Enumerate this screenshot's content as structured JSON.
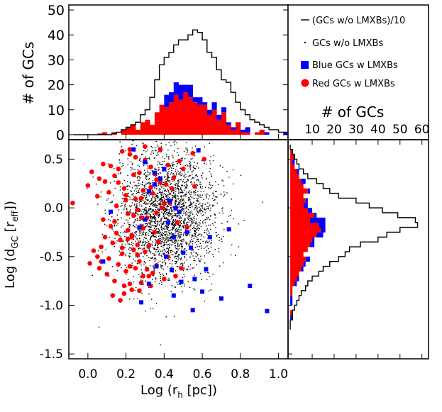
{
  "chart_data": [
    {
      "panel": "top-histogram",
      "type": "histogram",
      "title": "",
      "xlabel": "",
      "ylabel": "# of GCs",
      "xlim": [
        -0.1,
        1.05
      ],
      "ylim": [
        -2,
        52
      ],
      "yticks": [
        0,
        10,
        20,
        30,
        40,
        50
      ],
      "bin_width": 0.025,
      "bin_start": -0.075,
      "series": [
        {
          "name": "(GCs w/o LMXBs)/10",
          "style": "step",
          "color": "#000000",
          "values": [
            0,
            0,
            0,
            0,
            0,
            0,
            0,
            0,
            0.5,
            1,
            2,
            3,
            4,
            5,
            8,
            10,
            15,
            22,
            28,
            31,
            33,
            36,
            38,
            38,
            40,
            42,
            41,
            38,
            33,
            31,
            26,
            22,
            21,
            17,
            13,
            10,
            8,
            6,
            5,
            4,
            3,
            2,
            2,
            1,
            1,
            1,
            0,
            0
          ]
        },
        {
          "name": "Red GCs w LMXBs",
          "style": "filled",
          "color": "#ff0000",
          "values": [
            0,
            0,
            0,
            0,
            0,
            0.5,
            1,
            0,
            1,
            0,
            2,
            3,
            4,
            2,
            5,
            6,
            4,
            9,
            12,
            11,
            13,
            16,
            14,
            17,
            15,
            13,
            12,
            12,
            8,
            10,
            6,
            9,
            4,
            2,
            5,
            1,
            1,
            0,
            1,
            2,
            0,
            0,
            0,
            0,
            0,
            0,
            0,
            0
          ]
        },
        {
          "name": "Blue GCs w LMXBs",
          "style": "filled",
          "color": "#0000ff",
          "values": [
            0,
            0,
            0,
            0,
            0,
            0,
            0,
            0,
            0,
            0,
            0,
            0,
            0,
            0,
            0,
            0,
            0,
            0,
            0,
            5,
            4,
            5,
            6,
            3,
            5,
            2,
            3,
            1,
            2,
            3,
            2,
            2,
            1,
            1,
            0,
            1,
            2,
            0,
            0,
            0,
            1,
            0,
            0,
            0,
            1,
            0,
            0,
            0
          ]
        }
      ],
      "legend": {
        "placement": "top-right",
        "entries": [
          {
            "label": "(GCs w/o LMXBs)/10",
            "marker": "line",
            "color": "#000000"
          },
          {
            "label": "GCs w/o LMXBs",
            "marker": "dot",
            "color": "#000000"
          },
          {
            "label": "Blue GCs w LMXBs",
            "marker": "square",
            "color": "#0000ff"
          },
          {
            "label": "Red GCs w LMXBs",
            "marker": "circle",
            "color": "#ff0000"
          }
        ]
      }
    },
    {
      "panel": "main-scatter",
      "type": "scatter",
      "title": "",
      "xlabel": "Log (r_h [pc])",
      "ylabel": "Log (d_GC [r_eff])",
      "xlim": [
        -0.1,
        1.05
      ],
      "ylim": [
        -1.55,
        0.7
      ],
      "xticks": [
        0.0,
        0.2,
        0.4,
        0.6,
        0.8,
        1.0
      ],
      "xtick_labels": [
        "0.0",
        "0.2",
        "0.4",
        "0.6",
        "0.8",
        "1.0"
      ],
      "yticks": [
        -1.5,
        -1.0,
        -0.5,
        0.0,
        0.5
      ],
      "ytick_labels": [
        "-1.5",
        "-1.0",
        "-0.5",
        "0.0",
        "0.5"
      ],
      "background_cloud": {
        "name": "GCs w/o LMXBs",
        "color": "#000000",
        "count_drawn": 2600,
        "center": [
          0.41,
          -0.07
        ],
        "spread": [
          0.13,
          0.33
        ]
      },
      "series": [
        {
          "name": "Red GCs w LMXBs",
          "color": "#ff0000",
          "x": [
            0.12,
            0.16,
            0.08,
            0.02,
            0.25,
            0.3,
            0.22,
            0.18,
            0.06,
            0.14,
            0.27,
            0.33,
            0.36,
            0.41,
            0.45,
            0.5,
            0.38,
            0.3,
            0.24,
            0.19,
            0.11,
            0.05,
            0.0,
            -0.08,
            0.15,
            0.2,
            0.28,
            0.34,
            0.26,
            0.21,
            0.31,
            0.36,
            0.43,
            0.39,
            0.47,
            0.52,
            0.35,
            0.29,
            0.23,
            0.17,
            0.13,
            0.09,
            0.07,
            0.03,
            0.18,
            0.24,
            0.32,
            0.37,
            0.42,
            0.27,
            0.22,
            0.16,
            0.11,
            0.06,
            0.01,
            0.2,
            0.25,
            0.29,
            0.34,
            0.4,
            0.46,
            0.33,
            0.28,
            0.23,
            0.19,
            0.14,
            0.1,
            0.05,
            0.13,
            0.17,
            0.22,
            0.27,
            0.31,
            0.36,
            0.3,
            0.26,
            0.21,
            0.15,
            0.12,
            0.08,
            0.24,
            0.29,
            0.33,
            0.38,
            0.44,
            0.16,
            0.2,
            0.25,
            0.35,
            0.42,
            0.48,
            0.55,
            0.61,
            0.56,
            0.49,
            0.4,
            0.32,
            0.26,
            0.21,
            0.18,
            0.14,
            0.09,
            0.07,
            0.19,
            0.23,
            0.28,
            0.22
          ],
          "y": [
            0.43,
            0.4,
            0.45,
            0.37,
            0.52,
            0.49,
            0.55,
            0.58,
            0.3,
            0.33,
            0.36,
            0.42,
            0.29,
            0.24,
            0.31,
            0.4,
            0.6,
            0.63,
            0.34,
            0.2,
            0.16,
            0.12,
            0.23,
            0.05,
            0.02,
            0.08,
            0.1,
            0.15,
            -0.02,
            -0.06,
            -0.1,
            -0.05,
            0.05,
            0.0,
            -0.15,
            -0.2,
            -0.25,
            -0.21,
            -0.28,
            -0.33,
            -0.36,
            -0.3,
            -0.4,
            -0.44,
            -0.47,
            -0.43,
            -0.39,
            -0.35,
            -0.5,
            -0.55,
            -0.6,
            -0.58,
            -0.52,
            -0.62,
            -0.57,
            -0.65,
            -0.62,
            -0.7,
            -0.67,
            -0.73,
            -0.7,
            -0.8,
            -0.77,
            -0.84,
            -0.88,
            -0.75,
            -0.68,
            -0.5,
            -0.9,
            -0.95,
            -0.78,
            -0.85,
            -0.63,
            -0.59,
            -0.45,
            -0.38,
            -0.32,
            -0.26,
            -0.19,
            -0.12,
            -0.08,
            0.18,
            0.21,
            0.26,
            0.2,
            0.26,
            0.13,
            0.09,
            0.35,
            0.44,
            0.48,
            0.56,
            0.5,
            0.22,
            -0.62,
            0.05,
            -0.7,
            -0.48,
            -0.23,
            -0.41,
            -0.14,
            0.27,
            -0.55,
            -0.8,
            -0.3,
            -0.1,
            0.6
          ],
          "marker": "circle"
        },
        {
          "name": "Blue GCs w LMXBs",
          "color": "#0000ff",
          "x": [
            0.58,
            0.24,
            0.3,
            0.35,
            0.38,
            0.32,
            0.43,
            0.46,
            0.48,
            0.3,
            0.27,
            0.45,
            0.52,
            0.54,
            0.41,
            0.36,
            0.44,
            0.32,
            0.62,
            0.56,
            0.49,
            0.6,
            0.12,
            0.08,
            0.7,
            0.85,
            0.94,
            0.64,
            0.74,
            0.4,
            0.45,
            0.28,
            0.55,
            0.5,
            0.35,
            0.42
          ],
          "y": [
            0.59,
            0.6,
            0.47,
            0.24,
            0.3,
            0.17,
            0.07,
            0.0,
            -0.04,
            -0.12,
            -0.2,
            -0.3,
            -0.25,
            -0.41,
            -0.5,
            -0.6,
            -0.64,
            -0.78,
            -0.63,
            -0.73,
            -0.76,
            -0.86,
            -0.04,
            -0.55,
            -0.93,
            -0.8,
            -1.06,
            -0.3,
            -0.22,
            0.4,
            -0.9,
            -0.97,
            -1.05,
            -0.46,
            0.36,
            -0.15
          ],
          "marker": "square"
        }
      ]
    },
    {
      "panel": "right-histogram",
      "type": "histogram",
      "orientation": "horizontal",
      "title": "# of GCs",
      "xlabel": "# of GCs",
      "ylabel": "",
      "xlim": [
        -1,
        63
      ],
      "xticks": [
        10,
        20,
        30,
        40,
        50,
        60
      ],
      "xtick_labels": [
        "10",
        "20",
        "30",
        "40",
        "50",
        "60"
      ],
      "ylim": [
        -1.55,
        0.7
      ],
      "bin_width": 0.05,
      "bin_start": -1.25,
      "series": [
        {
          "name": "(GCs w/o LMXBs)/10",
          "style": "step",
          "color": "#000000",
          "values": [
            0,
            0,
            1,
            1,
            2,
            3,
            4,
            5,
            7,
            8,
            10,
            13,
            15,
            18,
            22,
            25,
            27,
            32,
            40,
            44,
            50,
            58,
            57,
            49,
            42,
            36,
            30,
            22,
            18,
            15,
            12,
            8,
            6,
            4,
            3,
            2,
            1,
            0
          ]
        },
        {
          "name": "Red GCs w LMXBs",
          "style": "filled",
          "color": "#ff0000",
          "values": [
            0,
            0,
            0,
            1,
            0,
            0,
            0,
            1,
            1,
            2,
            3,
            4,
            5,
            6,
            7,
            6,
            8,
            9,
            10,
            12,
            14,
            13,
            9,
            11,
            8,
            6,
            7,
            6,
            8,
            6,
            5,
            4,
            3,
            2,
            1,
            2,
            1,
            0
          ]
        },
        {
          "name": "Blue GCs w LMXBs",
          "style": "filled",
          "color": "#0000ff",
          "values": [
            0,
            0,
            1,
            0,
            0,
            1,
            1,
            0,
            0,
            1,
            1,
            0,
            1,
            1,
            2,
            0,
            0,
            2,
            1,
            3,
            2,
            3,
            7,
            1,
            2,
            2,
            1,
            0,
            1,
            0,
            2,
            0,
            1,
            0,
            1,
            0,
            0,
            0
          ]
        }
      ]
    }
  ],
  "labels": {
    "top_ylabel": "# of GCs",
    "right_title": "# of GCs",
    "main_xlabel_prefix": "Log (r",
    "main_xlabel_sub": "h",
    "main_xlabel_suffix": " [pc])",
    "main_ylabel_prefix": "Log (d",
    "main_ylabel_sub1": "GC",
    "main_ylabel_mid": " [r",
    "main_ylabel_sub2": "eff",
    "main_ylabel_suffix": "])"
  }
}
